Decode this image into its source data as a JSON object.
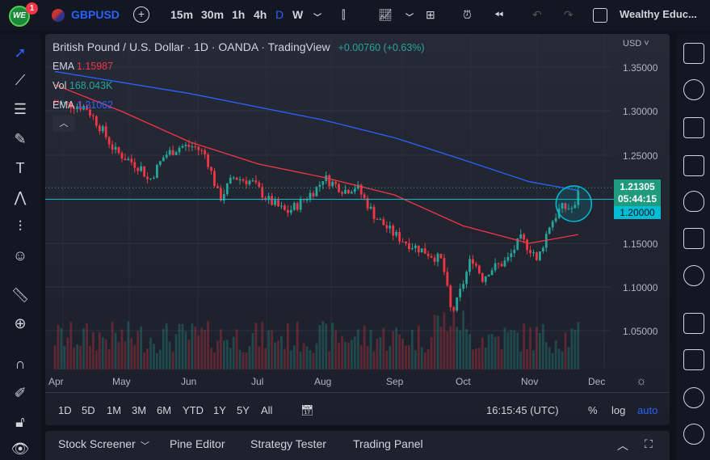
{
  "topbar": {
    "logo": "WE",
    "notif_count": "1",
    "symbol": "GBPUSD",
    "intervals": [
      "15m",
      "30m",
      "1h",
      "4h",
      "D",
      "W"
    ],
    "active_interval": "D",
    "layout_name": "Wealthy Educ..."
  },
  "legend": {
    "title": "British Pound / U.S. Dollar · 1D · OANDA · TradingView",
    "change": "+0.00760 (+0.63%)",
    "indicators": [
      {
        "name": "EMA",
        "value": "1.15987",
        "color": "#f23645"
      },
      {
        "name": "Vol",
        "value": "168.043K",
        "color": "#26a69a"
      },
      {
        "name": "EMA",
        "value": "1.21062",
        "color": "#2962ff"
      }
    ]
  },
  "price_axis": {
    "currency": "USD",
    "ticks": [
      "1.35000",
      "1.30000",
      "1.25000",
      "1.15000",
      "1.10000",
      "1.05000"
    ],
    "last_price": "1.21305",
    "countdown": "05:44:15",
    "hline_price": "1.20000"
  },
  "time_axis": [
    "Apr",
    "May",
    "Jun",
    "Jul",
    "Aug",
    "Sep",
    "Oct",
    "Nov",
    "Dec"
  ],
  "range_bar": {
    "ranges": [
      "1D",
      "5D",
      "1M",
      "3M",
      "6M",
      "YTD",
      "1Y",
      "5Y",
      "All"
    ],
    "time": "16:15:45 (UTC)",
    "percent": "%",
    "log": "log",
    "auto": "auto"
  },
  "bottom_panel": {
    "tabs": [
      "Stock Screener",
      "Pine Editor",
      "Strategy Tester",
      "Trading Panel"
    ]
  },
  "colors": {
    "up": "#26a69a",
    "down": "#f23645",
    "ema_fast": "#f23645",
    "ema_slow": "#2962ff",
    "hline": "#00bcd4",
    "accent": "#2962ff"
  },
  "chart_data": {
    "type": "candlestick",
    "ylim": [
      1.02,
      1.37
    ],
    "x_range": [
      "Apr",
      "Dec"
    ],
    "horizontal_line": 1.2,
    "circle_annotation": {
      "center_date": "Nov 21",
      "price": 1.195
    },
    "close_path": [
      [
        "Apr 1",
        1.31
      ],
      [
        "Apr 15",
        1.305
      ],
      [
        "Apr 22",
        1.28
      ],
      [
        "Apr 28",
        1.255
      ],
      [
        "May 10",
        1.235
      ],
      [
        "May 13",
        1.22
      ],
      [
        "May 20",
        1.25
      ],
      [
        "May 27",
        1.26
      ],
      [
        "Jun 3",
        1.26
      ],
      [
        "Jun 8",
        1.25
      ],
      [
        "Jun 14",
        1.2
      ],
      [
        "Jun 20",
        1.225
      ],
      [
        "Jun 28",
        1.22
      ],
      [
        "Jul 5",
        1.2
      ],
      [
        "Jul 14",
        1.185
      ],
      [
        "Jul 20",
        1.195
      ],
      [
        "Jul 29",
        1.215
      ],
      [
        "Aug 1",
        1.225
      ],
      [
        "Aug 10",
        1.21
      ],
      [
        "Aug 15",
        1.215
      ],
      [
        "Aug 23",
        1.18
      ],
      [
        "Sep 1",
        1.16
      ],
      [
        "Sep 7",
        1.15
      ],
      [
        "Sep 15",
        1.14
      ],
      [
        "Sep 22",
        1.13
      ],
      [
        "Sep 26",
        1.07
      ],
      [
        "Sep 28",
        1.08
      ],
      [
        "Oct 5",
        1.135
      ],
      [
        "Oct 10",
        1.11
      ],
      [
        "Oct 13",
        1.12
      ],
      [
        "Oct 21",
        1.13
      ],
      [
        "Oct 27",
        1.155
      ],
      [
        "Nov 3",
        1.14
      ],
      [
        "Nov 4",
        1.125
      ],
      [
        "Nov 10",
        1.17
      ],
      [
        "Nov 15",
        1.19
      ],
      [
        "Nov 22",
        1.19
      ],
      [
        "Nov 23",
        1.213
      ]
    ],
    "ema_fast": [
      [
        "Apr 1",
        1.33
      ],
      [
        "May 1",
        1.3
      ],
      [
        "Jun 1",
        1.265
      ],
      [
        "Jul 1",
        1.24
      ],
      [
        "Aug 1",
        1.225
      ],
      [
        "Sep 1",
        1.205
      ],
      [
        "Oct 1",
        1.17
      ],
      [
        "Nov 1",
        1.15
      ],
      [
        "Nov 23",
        1.16
      ]
    ],
    "ema_slow": [
      [
        "Apr 1",
        1.345
      ],
      [
        "Jun 1",
        1.32
      ],
      [
        "Aug 1",
        1.29
      ],
      [
        "Sep 1",
        1.27
      ],
      [
        "Oct 1",
        1.245
      ],
      [
        "Nov 1",
        1.22
      ],
      [
        "Nov 23",
        1.21
      ]
    ]
  }
}
